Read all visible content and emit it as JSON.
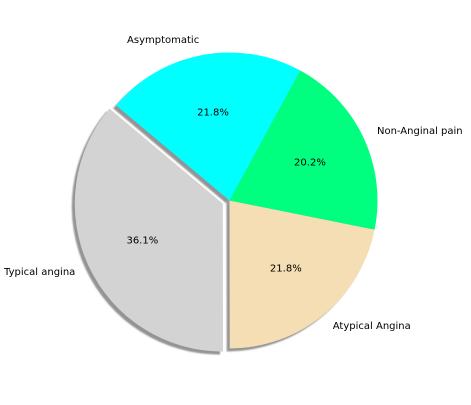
{
  "chart_data": {
    "type": "pie",
    "start_angle_deg": 140,
    "direction": "counterclockwise",
    "shadow": true,
    "slices": [
      {
        "label": "Typical angina",
        "value": 36.1,
        "pct_label": "36.1%",
        "color": "#d3d3d3",
        "exploded": true
      },
      {
        "label": "Atypical Angina",
        "value": 21.8,
        "pct_label": "21.8%",
        "color": "#f5deb3",
        "exploded": false
      },
      {
        "label": "Non-Anginal pain",
        "value": 20.2,
        "pct_label": "20.2%",
        "color": "#00ff7f",
        "exploded": false
      },
      {
        "label": "Asymptomatic",
        "value": 21.8,
        "pct_label": "21.8%",
        "color": "#00ffff",
        "exploded": false
      }
    ]
  }
}
